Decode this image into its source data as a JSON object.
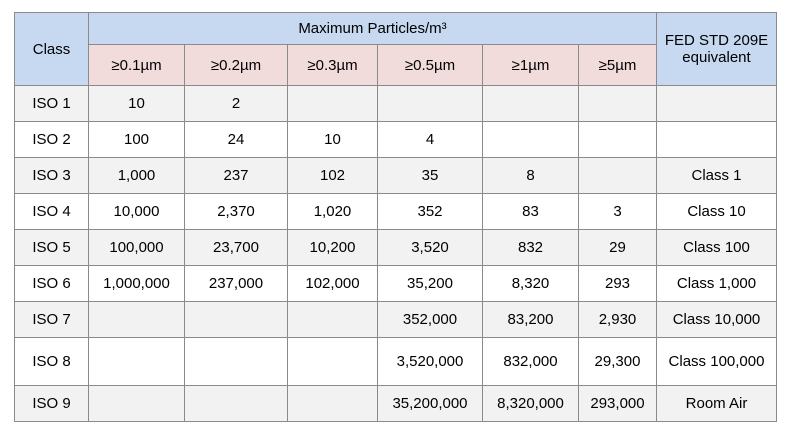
{
  "table": {
    "header": {
      "class": "Class",
      "group": "Maximum Particles/m³",
      "fed": "FED STD 209E equivalent",
      "sizes": [
        "≥0.1µm",
        "≥0.2µm",
        "≥0.3µm",
        "≥0.5µm",
        "≥1µm",
        "≥5µm"
      ]
    },
    "rows": [
      [
        "ISO 1",
        "10",
        "2",
        null,
        null,
        null,
        null,
        null
      ],
      [
        "ISO 2",
        "100",
        "24",
        "10",
        "4",
        null,
        null,
        null
      ],
      [
        "ISO 3",
        "1,000",
        "237",
        "102",
        "35",
        "8",
        null,
        "Class 1"
      ],
      [
        "ISO 4",
        "10,000",
        "2,370",
        "1,020",
        "352",
        "83",
        "3",
        "Class 10"
      ],
      [
        "ISO 5",
        "100,000",
        "23,700",
        "10,200",
        "3,520",
        "832",
        "29",
        "Class 100"
      ],
      [
        "ISO 6",
        "1,000,000",
        "237,000",
        "102,000",
        "35,200",
        "8,320",
        "293",
        "Class 1,000"
      ],
      [
        "ISO 7",
        null,
        null,
        null,
        "352,000",
        "83,200",
        "2,930",
        "Class 10,000"
      ],
      [
        "ISO 8",
        null,
        null,
        null,
        "3,520,000",
        "832,000",
        "29,300",
        "Class 100,000"
      ],
      [
        "ISO 9",
        null,
        null,
        null,
        "35,200,000",
        "8,320,000",
        "293,000",
        "Room Air"
      ]
    ]
  }
}
